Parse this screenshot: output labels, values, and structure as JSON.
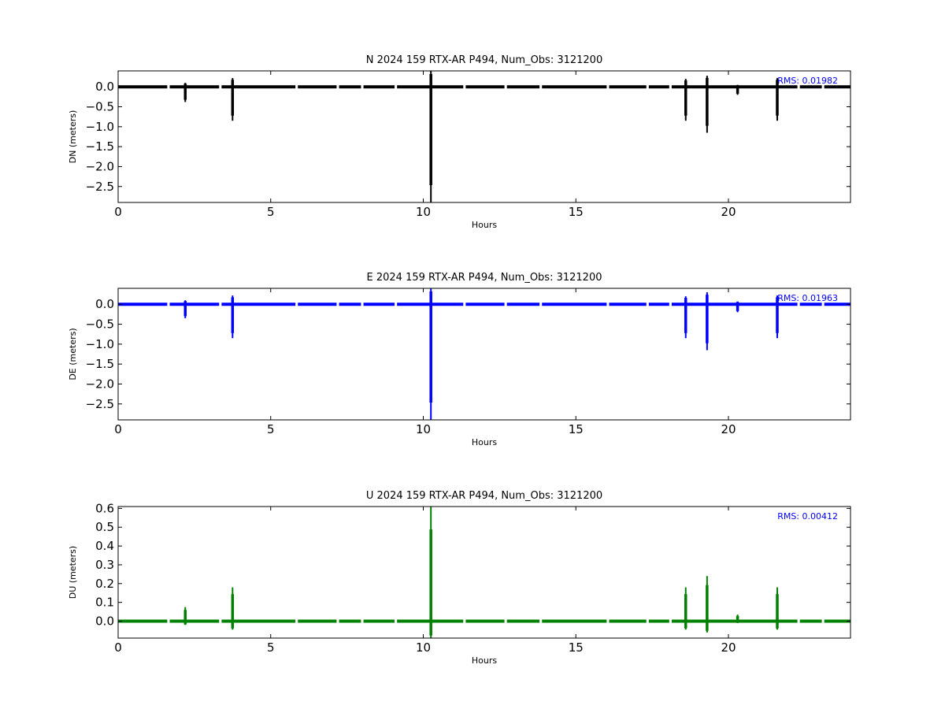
{
  "chart_data": [
    {
      "type": "line",
      "title": "N 2024 159 RTX-AR  P494, Num_Obs: 3121200",
      "xlabel": "Hours",
      "ylabel": "DN (meters)",
      "xlim": [
        0,
        24
      ],
      "ylim": [
        -2.9,
        0.4
      ],
      "xticks": [
        0,
        5,
        10,
        15,
        20
      ],
      "yticks": [
        0.0,
        -0.5,
        -1.0,
        -1.5,
        -2.0,
        -2.5
      ],
      "ytick_labels": [
        "0.0",
        "−0.5",
        "−1.0",
        "−1.5",
        "−2.0",
        "−2.5"
      ],
      "grid": false,
      "color": "#000000",
      "rms_label": "RMS:  0.01982",
      "baseline": 0.0,
      "spikes": [
        {
          "x": 2.2,
          "min": -0.38,
          "max": 0.1
        },
        {
          "x": 3.75,
          "min": -0.85,
          "max": 0.22
        },
        {
          "x": 10.25,
          "min": -2.9,
          "max": 0.4
        },
        {
          "x": 18.6,
          "min": -0.85,
          "max": 0.2
        },
        {
          "x": 19.3,
          "min": -1.15,
          "max": 0.28
        },
        {
          "x": 20.3,
          "min": -0.2,
          "max": 0.05
        },
        {
          "x": 21.6,
          "min": -0.85,
          "max": 0.22
        }
      ]
    },
    {
      "type": "line",
      "title": "E 2024 159 RTX-AR  P494, Num_Obs: 3121200",
      "xlabel": "Hours",
      "ylabel": "DE (meters)",
      "xlim": [
        0,
        24
      ],
      "ylim": [
        -2.9,
        0.4
      ],
      "xticks": [
        0,
        5,
        10,
        15,
        20
      ],
      "yticks": [
        0.0,
        -0.5,
        -1.0,
        -1.5,
        -2.0,
        -2.5
      ],
      "ytick_labels": [
        "0.0",
        "−0.5",
        "−1.0",
        "−1.5",
        "−2.0",
        "−2.5"
      ],
      "grid": false,
      "color": "#0000ff",
      "rms_label": "RMS:  0.01963",
      "baseline": 0.0,
      "spikes": [
        {
          "x": 2.2,
          "min": -0.35,
          "max": 0.1
        },
        {
          "x": 3.75,
          "min": -0.85,
          "max": 0.22
        },
        {
          "x": 10.25,
          "min": -2.9,
          "max": 0.4
        },
        {
          "x": 18.6,
          "min": -0.85,
          "max": 0.2
        },
        {
          "x": 19.3,
          "min": -1.15,
          "max": 0.3
        },
        {
          "x": 20.3,
          "min": -0.2,
          "max": 0.07
        },
        {
          "x": 21.6,
          "min": -0.85,
          "max": 0.22
        }
      ]
    },
    {
      "type": "line",
      "title": "U 2024 159 RTX-AR  P494, Num_Obs: 3121200",
      "xlabel": "Hours",
      "ylabel": "DU (meters)",
      "xlim": [
        0,
        24
      ],
      "ylim": [
        -0.09,
        0.61
      ],
      "xticks": [
        0,
        5,
        10,
        15,
        20
      ],
      "yticks": [
        0.6,
        0.5,
        0.4,
        0.3,
        0.2,
        0.1,
        0.0
      ],
      "ytick_labels": [
        "0.6",
        "0.5",
        "0.4",
        "0.3",
        "0.2",
        "0.1",
        "0.0"
      ],
      "grid": false,
      "color": "#008000",
      "rms_label": "RMS:  0.00412",
      "baseline": 0.0,
      "spikes": [
        {
          "x": 2.2,
          "min": -0.02,
          "max": 0.075
        },
        {
          "x": 3.75,
          "min": -0.045,
          "max": 0.18
        },
        {
          "x": 10.25,
          "min": -0.09,
          "max": 0.61
        },
        {
          "x": 18.6,
          "min": -0.045,
          "max": 0.18
        },
        {
          "x": 19.3,
          "min": -0.06,
          "max": 0.24
        },
        {
          "x": 20.3,
          "min": -0.01,
          "max": 0.035
        },
        {
          "x": 21.6,
          "min": -0.045,
          "max": 0.18
        }
      ]
    }
  ]
}
